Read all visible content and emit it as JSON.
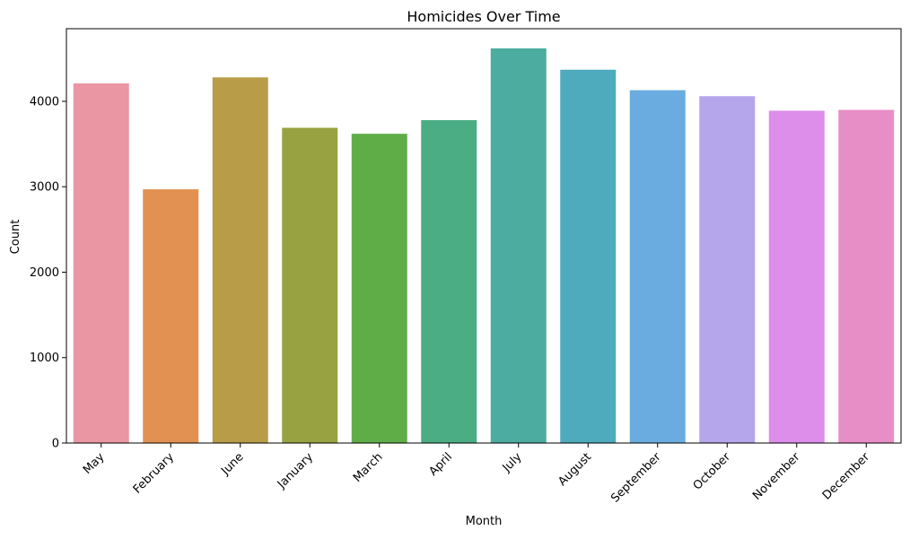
{
  "chart_data": {
    "type": "bar",
    "title": "Homicides Over Time",
    "xlabel": "Month",
    "ylabel": "Count",
    "categories": [
      "May",
      "February",
      "June",
      "January",
      "March",
      "April",
      "July",
      "August",
      "September",
      "October",
      "November",
      "December"
    ],
    "values": [
      4210,
      2970,
      4280,
      3690,
      3620,
      3780,
      4620,
      4370,
      4130,
      4060,
      3890,
      3900
    ],
    "colors": [
      "#ea96a3",
      "#e29152",
      "#b89c48",
      "#98a240",
      "#5fad47",
      "#4aad84",
      "#4cac9f",
      "#4eaabd",
      "#6aacdf",
      "#b5a5eb",
      "#dd8dea",
      "#e88ec6"
    ],
    "ylim": [
      0,
      4850
    ],
    "yticks": [
      0,
      1000,
      2000,
      3000,
      4000
    ],
    "grid": false,
    "legend": "none"
  }
}
